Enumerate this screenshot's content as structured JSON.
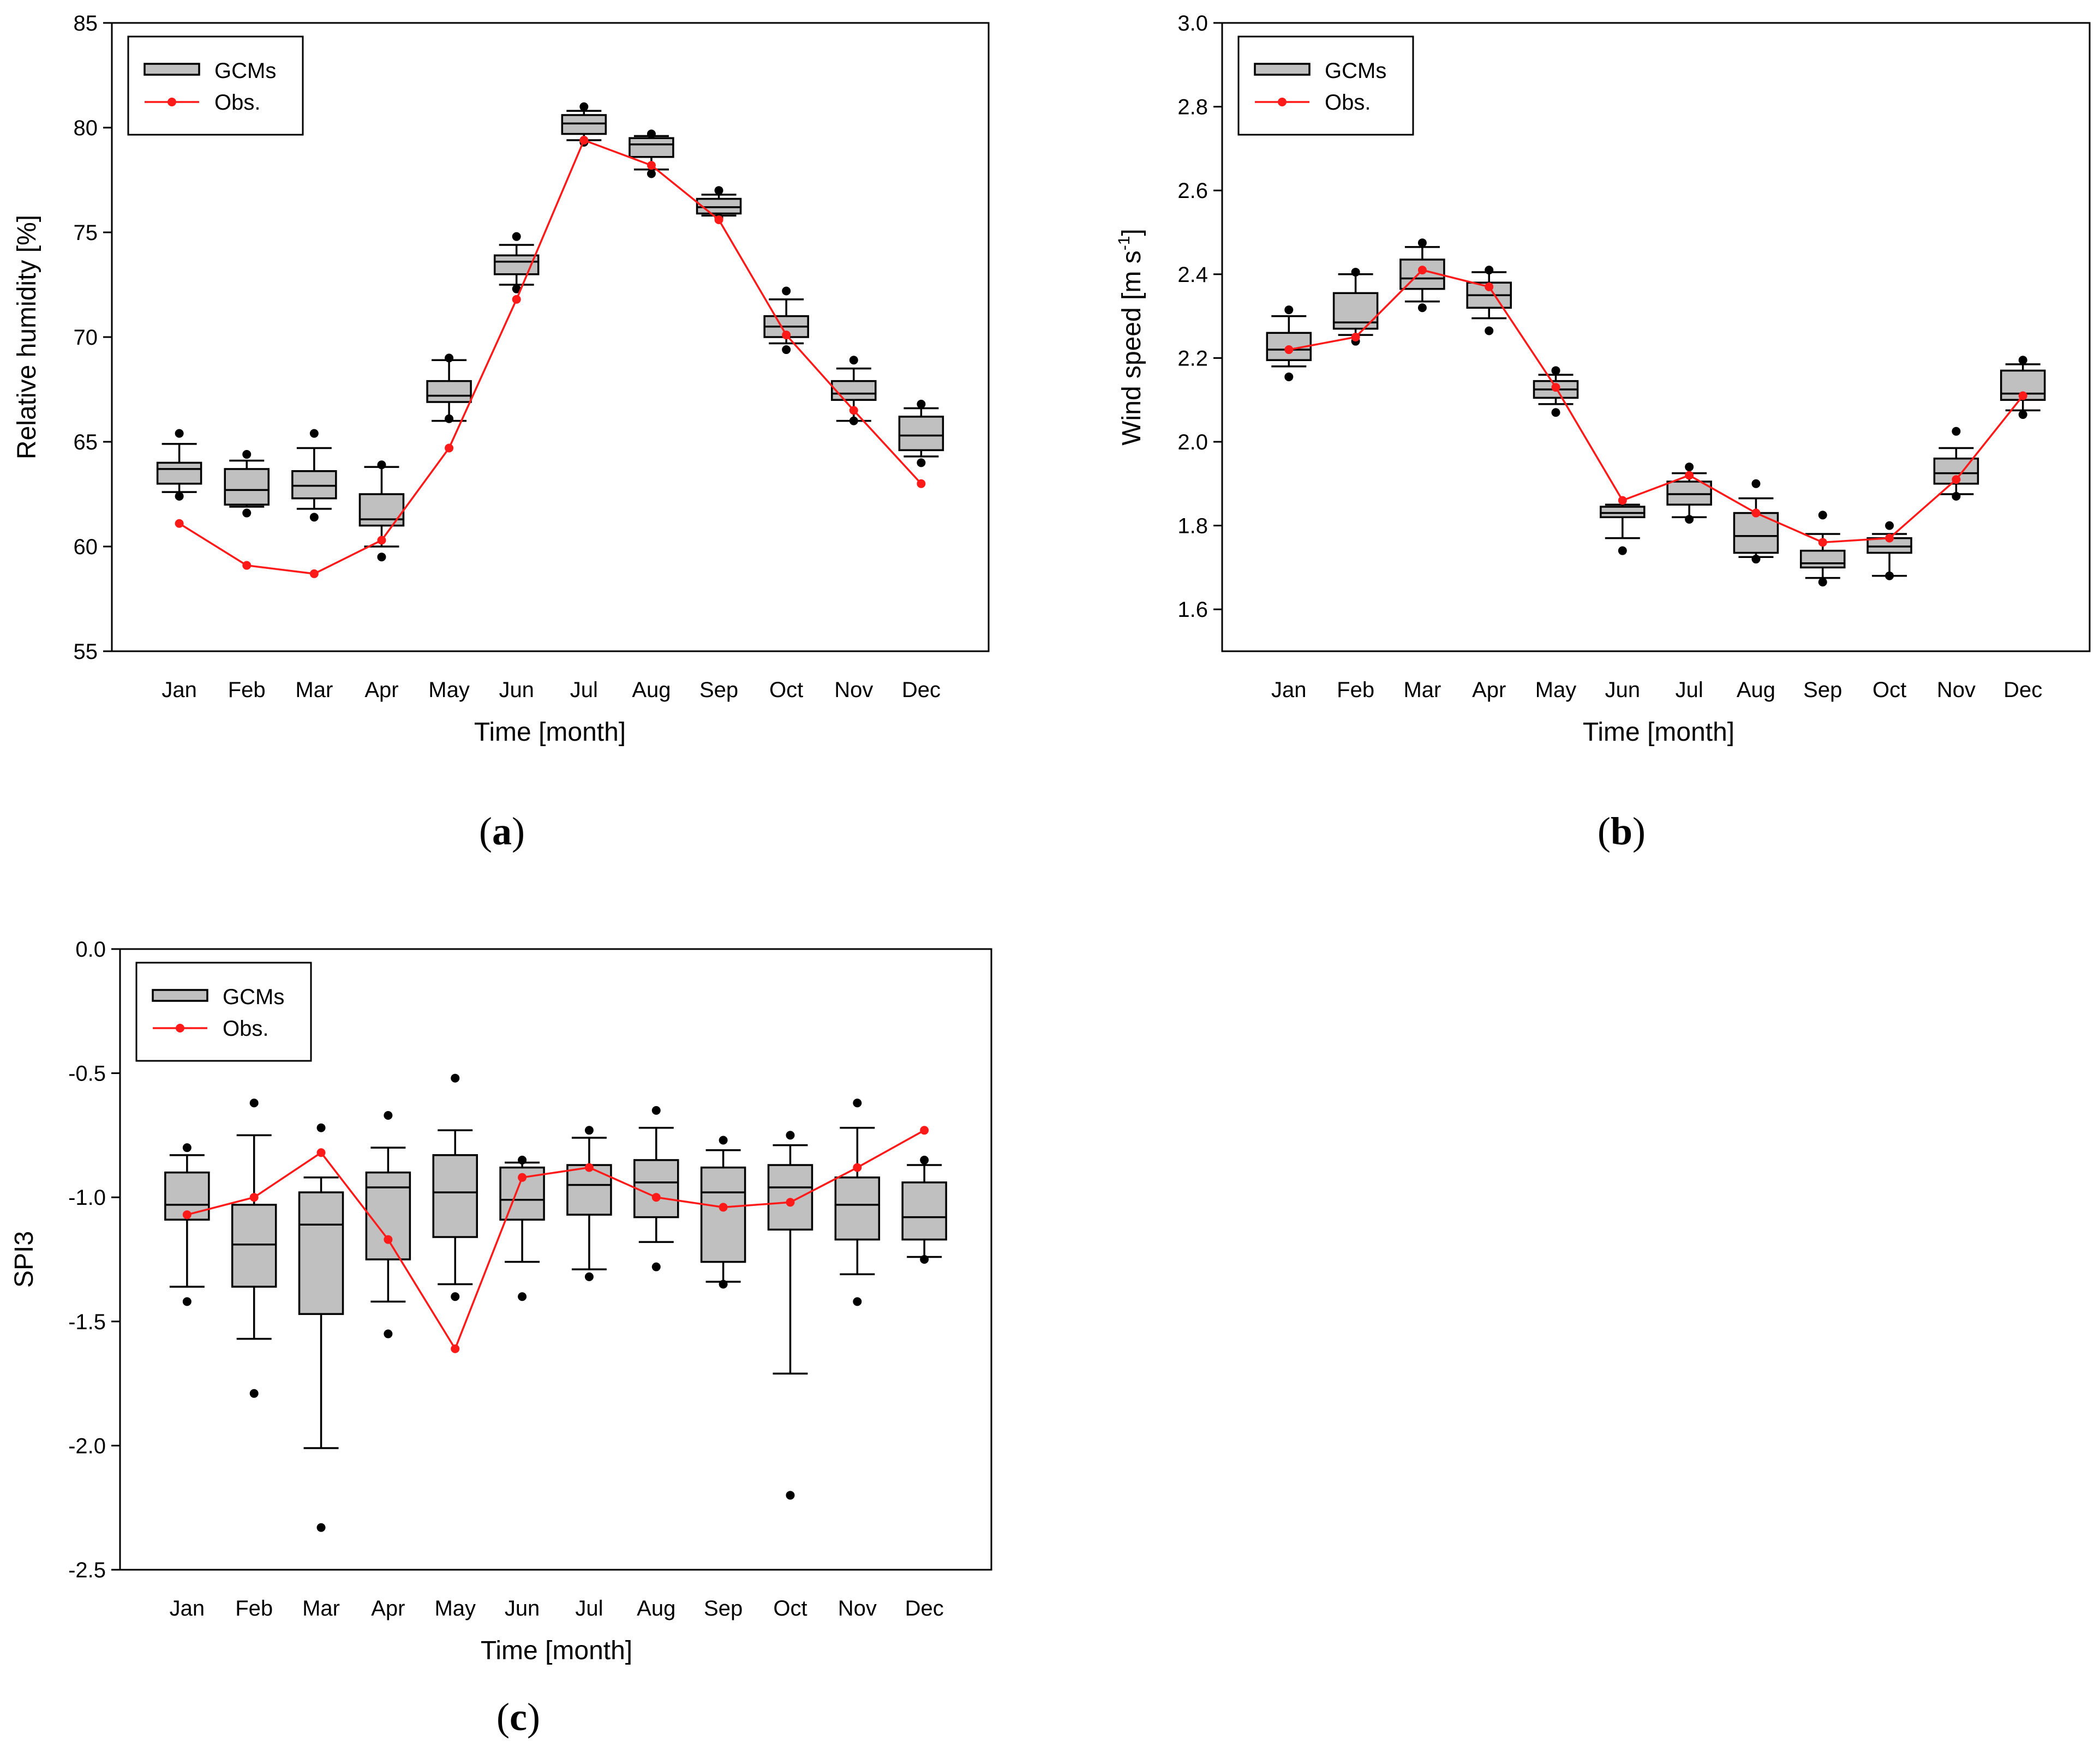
{
  "chart_data": [
    {
      "type": "box",
      "panel_label": "a",
      "xlabel": "Time [month]",
      "ylabel": "Relative humidity [%]",
      "ylim": [
        55,
        85
      ],
      "yticks": [
        "55",
        "60",
        "65",
        "70",
        "75",
        "80",
        "85"
      ],
      "yticks_values": [
        55,
        60,
        65,
        70,
        75,
        80,
        85
      ],
      "categories": [
        "Jan",
        "Feb",
        "Mar",
        "Apr",
        "May",
        "Jun",
        "Jul",
        "Aug",
        "Sep",
        "Oct",
        "Nov",
        "Dec"
      ],
      "grid": true,
      "legend": {
        "position": "top-left",
        "entries": [
          "GCMs",
          "Obs."
        ]
      },
      "series": [
        {
          "name": "GCMs",
          "boxes": [
            {
              "whisker_low": 62.6,
              "q1": 63.0,
              "median": 63.7,
              "q3": 64.0,
              "whisker_high": 64.9,
              "outliers": [
                62.4,
                65.4
              ]
            },
            {
              "whisker_low": 61.9,
              "q1": 62.0,
              "median": 62.7,
              "q3": 63.7,
              "whisker_high": 64.1,
              "outliers": [
                61.6,
                64.4
              ]
            },
            {
              "whisker_low": 61.8,
              "q1": 62.3,
              "median": 62.9,
              "q3": 63.6,
              "whisker_high": 64.7,
              "outliers": [
                61.4,
                65.4
              ]
            },
            {
              "whisker_low": 60.0,
              "q1": 61.0,
              "median": 61.3,
              "q3": 62.5,
              "whisker_high": 63.8,
              "outliers": [
                59.5,
                63.9
              ]
            },
            {
              "whisker_low": 66.0,
              "q1": 66.9,
              "median": 67.2,
              "q3": 67.9,
              "whisker_high": 68.9,
              "outliers": [
                66.1,
                69.0
              ]
            },
            {
              "whisker_low": 72.5,
              "q1": 73.0,
              "median": 73.6,
              "q3": 73.9,
              "whisker_high": 74.4,
              "outliers": [
                72.3,
                74.8
              ]
            },
            {
              "whisker_low": 79.4,
              "q1": 79.7,
              "median": 80.2,
              "q3": 80.6,
              "whisker_high": 80.8,
              "outliers": [
                79.3,
                81.0
              ]
            },
            {
              "whisker_low": 78.0,
              "q1": 78.6,
              "median": 79.2,
              "q3": 79.5,
              "whisker_high": 79.6,
              "outliers": [
                77.8,
                79.7
              ]
            },
            {
              "whisker_low": 75.8,
              "q1": 75.9,
              "median": 76.2,
              "q3": 76.6,
              "whisker_high": 76.8,
              "outliers": [
                75.7,
                77.0
              ]
            },
            {
              "whisker_low": 69.7,
              "q1": 70.0,
              "median": 70.5,
              "q3": 71.0,
              "whisker_high": 71.8,
              "outliers": [
                69.4,
                72.2
              ]
            },
            {
              "whisker_low": 66.0,
              "q1": 67.0,
              "median": 67.3,
              "q3": 67.9,
              "whisker_high": 68.5,
              "outliers": [
                66.0,
                68.9
              ]
            },
            {
              "whisker_low": 64.3,
              "q1": 64.6,
              "median": 65.3,
              "q3": 66.2,
              "whisker_high": 66.6,
              "outliers": [
                64.0,
                66.8
              ]
            }
          ]
        },
        {
          "name": "Obs.",
          "values": [
            61.1,
            59.1,
            58.7,
            60.3,
            64.7,
            71.8,
            79.4,
            78.2,
            75.6,
            70.1,
            66.5,
            63.0
          ]
        }
      ]
    },
    {
      "type": "box",
      "panel_label": "b",
      "xlabel": "Time [month]",
      "ylabel_main": "Wind speed [m s",
      "ylabel_sup": "-1",
      "ylabel_end": "]",
      "ylim": [
        1.5,
        3.0
      ],
      "yticks": [
        "1.6",
        "1.8",
        "2.0",
        "2.2",
        "2.4",
        "2.6",
        "2.8",
        "3.0"
      ],
      "yticks_values": [
        1.6,
        1.8,
        2.0,
        2.2,
        2.4,
        2.6,
        2.8,
        3.0
      ],
      "categories": [
        "Jan",
        "Feb",
        "Mar",
        "Apr",
        "May",
        "Jun",
        "Jul",
        "Aug",
        "Sep",
        "Oct",
        "Nov",
        "Dec"
      ],
      "grid": true,
      "legend": {
        "position": "top-left",
        "entries": [
          "GCMs",
          "Obs."
        ]
      },
      "series": [
        {
          "name": "GCMs",
          "boxes": [
            {
              "whisker_low": 2.18,
              "q1": 2.195,
              "median": 2.22,
              "q3": 2.26,
              "whisker_high": 2.3,
              "outliers": [
                2.155,
                2.315
              ]
            },
            {
              "whisker_low": 2.255,
              "q1": 2.27,
              "median": 2.285,
              "q3": 2.355,
              "whisker_high": 2.4,
              "outliers": [
                2.24,
                2.405
              ]
            },
            {
              "whisker_low": 2.335,
              "q1": 2.365,
              "median": 2.39,
              "q3": 2.435,
              "whisker_high": 2.465,
              "outliers": [
                2.32,
                2.475
              ]
            },
            {
              "whisker_low": 2.295,
              "q1": 2.32,
              "median": 2.35,
              "q3": 2.38,
              "whisker_high": 2.405,
              "outliers": [
                2.265,
                2.41
              ]
            },
            {
              "whisker_low": 2.09,
              "q1": 2.105,
              "median": 2.125,
              "q3": 2.145,
              "whisker_high": 2.16,
              "outliers": [
                2.07,
                2.17
              ]
            },
            {
              "whisker_low": 1.77,
              "q1": 1.82,
              "median": 1.83,
              "q3": 1.845,
              "whisker_high": 1.85,
              "outliers": [
                1.74
              ]
            },
            {
              "whisker_low": 1.82,
              "q1": 1.85,
              "median": 1.875,
              "q3": 1.905,
              "whisker_high": 1.925,
              "outliers": [
                1.815,
                1.94
              ]
            },
            {
              "whisker_low": 1.725,
              "q1": 1.735,
              "median": 1.775,
              "q3": 1.83,
              "whisker_high": 1.865,
              "outliers": [
                1.72,
                1.9
              ]
            },
            {
              "whisker_low": 1.675,
              "q1": 1.7,
              "median": 1.71,
              "q3": 1.74,
              "whisker_high": 1.78,
              "outliers": [
                1.665,
                1.825
              ]
            },
            {
              "whisker_low": 1.68,
              "q1": 1.735,
              "median": 1.75,
              "q3": 1.77,
              "whisker_high": 1.78,
              "outliers": [
                1.68,
                1.8
              ]
            },
            {
              "whisker_low": 1.875,
              "q1": 1.9,
              "median": 1.925,
              "q3": 1.96,
              "whisker_high": 1.985,
              "outliers": [
                1.87,
                2.025
              ]
            },
            {
              "whisker_low": 2.075,
              "q1": 2.1,
              "median": 2.115,
              "q3": 2.17,
              "whisker_high": 2.185,
              "outliers": [
                2.065,
                2.195
              ]
            }
          ]
        },
        {
          "name": "Obs.",
          "values": [
            2.22,
            2.25,
            2.41,
            2.37,
            2.13,
            1.86,
            1.92,
            1.83,
            1.76,
            1.77,
            1.91,
            2.11
          ]
        }
      ]
    },
    {
      "type": "box",
      "panel_label": "c",
      "xlabel": "Time [month]",
      "ylabel": "SPI3",
      "ylim": [
        -2.5,
        0.0
      ],
      "yticks": [
        "-2.5",
        "-2.0",
        "-1.5",
        "-1.0",
        "-0.5",
        "0.0"
      ],
      "yticks_values": [
        -2.5,
        -2.0,
        -1.5,
        -1.0,
        -0.5,
        0.0
      ],
      "categories": [
        "Jan",
        "Feb",
        "Mar",
        "Apr",
        "May",
        "Jun",
        "Jul",
        "Aug",
        "Sep",
        "Oct",
        "Nov",
        "Dec"
      ],
      "grid": true,
      "legend": {
        "position": "top-left",
        "entries": [
          "GCMs",
          "Obs."
        ]
      },
      "series": [
        {
          "name": "GCMs",
          "boxes": [
            {
              "whisker_low": -1.36,
              "q1": -1.09,
              "median": -1.03,
              "q3": -0.9,
              "whisker_high": -0.83,
              "outliers": [
                -1.42,
                -0.8
              ]
            },
            {
              "whisker_low": -1.57,
              "q1": -1.36,
              "median": -1.19,
              "q3": -1.03,
              "whisker_high": -0.75,
              "outliers": [
                -1.79,
                -0.62
              ]
            },
            {
              "whisker_low": -2.01,
              "q1": -1.47,
              "median": -1.11,
              "q3": -0.98,
              "whisker_high": -0.92,
              "outliers": [
                -2.33,
                -0.72
              ]
            },
            {
              "whisker_low": -1.42,
              "q1": -1.25,
              "median": -0.96,
              "q3": -0.9,
              "whisker_high": -0.8,
              "outliers": [
                -1.55,
                -0.67
              ]
            },
            {
              "whisker_low": -1.35,
              "q1": -1.16,
              "median": -0.98,
              "q3": -0.83,
              "whisker_high": -0.73,
              "outliers": [
                -1.4,
                -0.52
              ]
            },
            {
              "whisker_low": -1.26,
              "q1": -1.09,
              "median": -1.01,
              "q3": -0.88,
              "whisker_high": -0.86,
              "outliers": [
                -1.4,
                -0.85
              ]
            },
            {
              "whisker_low": -1.29,
              "q1": -1.07,
              "median": -0.95,
              "q3": -0.87,
              "whisker_high": -0.76,
              "outliers": [
                -1.32,
                -0.73
              ]
            },
            {
              "whisker_low": -1.18,
              "q1": -1.08,
              "median": -0.94,
              "q3": -0.85,
              "whisker_high": -0.72,
              "outliers": [
                -1.28,
                -0.65
              ]
            },
            {
              "whisker_low": -1.34,
              "q1": -1.26,
              "median": -0.98,
              "q3": -0.88,
              "whisker_high": -0.81,
              "outliers": [
                -1.35,
                -0.77
              ]
            },
            {
              "whisker_low": -1.71,
              "q1": -1.13,
              "median": -0.96,
              "q3": -0.87,
              "whisker_high": -0.79,
              "outliers": [
                -2.2,
                -0.75
              ]
            },
            {
              "whisker_low": -1.31,
              "q1": -1.17,
              "median": -1.03,
              "q3": -0.92,
              "whisker_high": -0.72,
              "outliers": [
                -1.42,
                -0.62
              ]
            },
            {
              "whisker_low": -1.24,
              "q1": -1.17,
              "median": -1.08,
              "q3": -0.94,
              "whisker_high": -0.87,
              "outliers": [
                -1.25,
                -0.85
              ]
            }
          ]
        },
        {
          "name": "Obs.",
          "values": [
            -1.07,
            -1.0,
            -0.82,
            -1.17,
            -1.61,
            -0.92,
            -0.88,
            -1.0,
            -1.04,
            -1.02,
            -0.88,
            -0.73
          ]
        }
      ]
    }
  ]
}
